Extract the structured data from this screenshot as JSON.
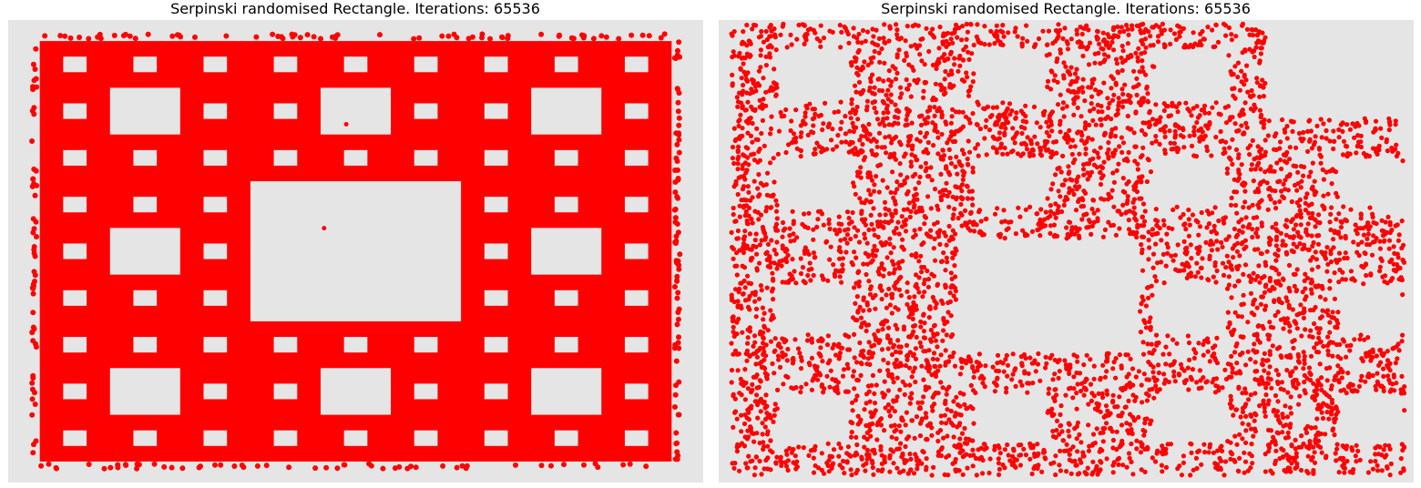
{
  "colors": {
    "points": "#ff0000",
    "axes_background": "#e5e5e5"
  },
  "chart_data": [
    {
      "type": "scatter",
      "title": "Serpinski randomised Rectangle. Iterations: 65536",
      "xlabel": "",
      "ylabel": "",
      "axis_visible": false,
      "grid": false,
      "point_count": 65536,
      "pattern": "sierpinski-carpet",
      "carpet_levels": 3,
      "xlim": [
        -0.05,
        1.05
      ],
      "ylim": [
        -0.05,
        1.05
      ],
      "series": [
        {
          "color": "#ff0000"
        }
      ]
    },
    {
      "type": "scatter",
      "title": "Serpinski randomised Rectangle. Iterations: 65536",
      "xlabel": "",
      "ylabel": "",
      "axis_visible": false,
      "grid": false,
      "point_count": 65536,
      "pattern": "randomised-carpet",
      "xlim": [
        0,
        1
      ],
      "ylim": [
        0,
        1.0
      ],
      "series": [
        {
          "color": "#ff0000"
        }
      ]
    }
  ]
}
